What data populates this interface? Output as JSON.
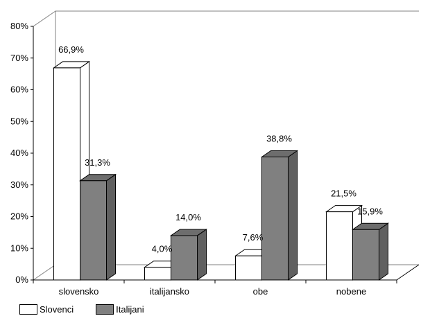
{
  "chart_data": {
    "type": "bar",
    "categories": [
      "slovensko",
      "italijansko",
      "obe",
      "nobene"
    ],
    "series": [
      {
        "name": "Slovenci",
        "values": [
          66.9,
          4.0,
          7.6,
          21.5
        ],
        "labels": [
          "66,9%",
          "4,0%",
          "7,6%",
          "21,5%"
        ],
        "color": "#ffffff"
      },
      {
        "name": "Italijani",
        "values": [
          31.3,
          14.0,
          38.8,
          15.9
        ],
        "labels": [
          "31,3%",
          "14,0%",
          "38,8%",
          "15,9%"
        ],
        "color": "#808080"
      }
    ],
    "ylim": [
      0,
      80
    ],
    "yticks": [
      "0%",
      "10%",
      "20%",
      "30%",
      "40%",
      "50%",
      "60%",
      "70%",
      "80%"
    ],
    "three_d": true,
    "grid": false,
    "legend_position": "bottom-left"
  }
}
